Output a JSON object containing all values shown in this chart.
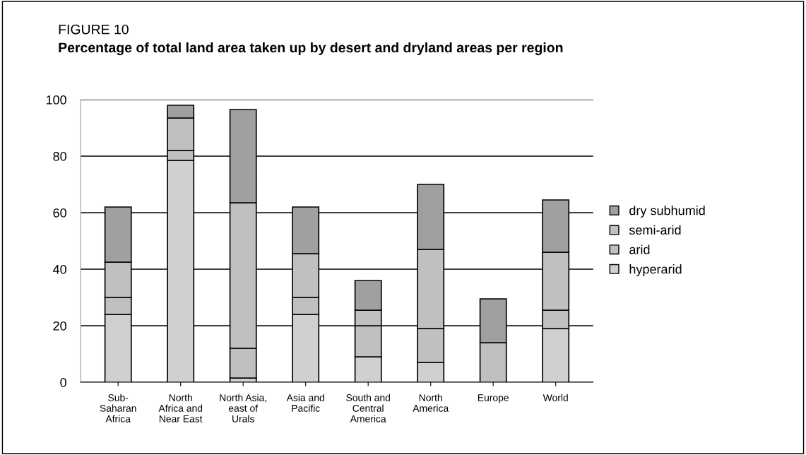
{
  "chart_data": {
    "type": "bar",
    "stacked": true,
    "title": "FIGURE 10",
    "subtitle": "Percentage of total land area taken up by desert and dryland areas per region",
    "categories": [
      "Sub-\nSaharan\nAfrica",
      "North\nAfrica and\nNear East",
      "North Asia,\neast of\nUrals",
      "Asia and\nPacific",
      "South and\nCentral\nAmerica",
      "North\nAmerica",
      "Europe",
      "World"
    ],
    "series": [
      {
        "name": "hyperarid",
        "color": "#d0d0d0",
        "values": [
          24,
          78.5,
          1.5,
          24,
          9,
          7,
          0,
          19
        ]
      },
      {
        "name": "arid",
        "color": "#c0c0c0",
        "values": [
          6,
          3.5,
          10.5,
          6,
          11,
          12,
          0,
          6.5
        ]
      },
      {
        "name": "semi-arid",
        "color": "#c0c0c0",
        "values": [
          12.5,
          11.5,
          51.5,
          15.5,
          5.5,
          28,
          14,
          20.5
        ]
      },
      {
        "name": "dry subhumid",
        "color": "#a0a0a0",
        "values": [
          19.5,
          4.5,
          33,
          16.5,
          10.5,
          23,
          15.5,
          18.5
        ]
      }
    ],
    "ylim": [
      0,
      100
    ],
    "yticks": [
      0,
      20,
      40,
      60,
      80,
      100
    ],
    "grid": "y",
    "legend": "right"
  }
}
